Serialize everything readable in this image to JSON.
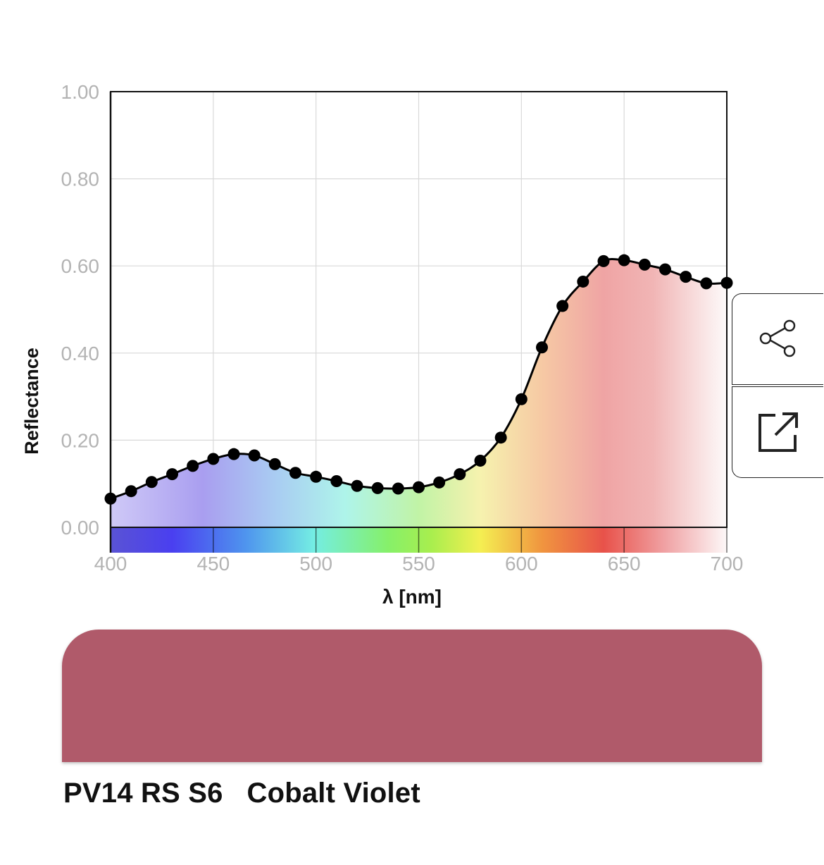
{
  "chart_data": {
    "type": "line",
    "xlabel": "λ [nm]",
    "ylabel": "Reflectance",
    "xlim": [
      400,
      700
    ],
    "ylim": [
      0,
      1
    ],
    "x_ticks": [
      "400",
      "450",
      "500",
      "550",
      "600",
      "650",
      "700"
    ],
    "y_ticks": [
      "0.00",
      "0.20",
      "0.40",
      "0.60",
      "0.80",
      "1.00"
    ],
    "grid": true,
    "x": [
      400,
      410,
      420,
      430,
      440,
      450,
      460,
      470,
      480,
      490,
      500,
      510,
      520,
      530,
      540,
      550,
      560,
      570,
      580,
      590,
      600,
      610,
      620,
      630,
      640,
      650,
      660,
      670,
      680,
      690,
      700
    ],
    "y": [
      0.066,
      0.083,
      0.104,
      0.122,
      0.141,
      0.157,
      0.168,
      0.165,
      0.145,
      0.125,
      0.116,
      0.106,
      0.095,
      0.09,
      0.089,
      0.092,
      0.103,
      0.122,
      0.153,
      0.206,
      0.294,
      0.413,
      0.508,
      0.564,
      0.611,
      0.613,
      0.603,
      0.592,
      0.575,
      0.56,
      0.561
    ]
  },
  "pigment": {
    "label": "PV14 RS S6   Cobalt Violet",
    "swatch_color": "#b05a6a"
  },
  "actions": {
    "share_icon": "share-icon",
    "open_icon": "external-link-icon"
  }
}
